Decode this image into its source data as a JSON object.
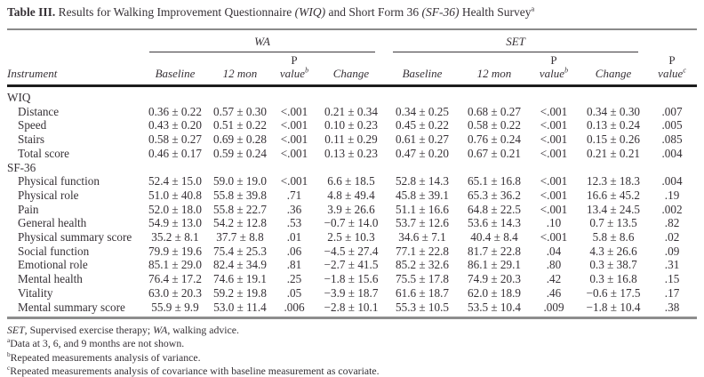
{
  "title": {
    "label": "Table III.",
    "part1": " Results for Walking Improvement Questionnaire ",
    "wiq": "(WIQ)",
    "part2": " and Short Form 36 ",
    "sf36": "(SF-36)",
    "part3": " Health Survey",
    "sup": "a"
  },
  "table": {
    "groups": [
      {
        "label": "WA"
      },
      {
        "label": "SET"
      }
    ],
    "col_headers": {
      "instrument": "Instrument",
      "baseline": "Baseline",
      "twelve_mon": "12 mon",
      "p": "P",
      "value": "value",
      "sup_b": "b",
      "sup_c": "c",
      "change": "Change"
    },
    "rows": [
      {
        "type": "section",
        "label": "WIQ"
      },
      {
        "type": "data",
        "label": "Distance",
        "values": [
          "0.36 ± 0.22",
          "0.57 ± 0.30",
          "<.001",
          "0.21 ± 0.34",
          "0.34 ± 0.25",
          "0.68 ± 0.27",
          "<.001",
          "0.34 ± 0.30",
          ".007"
        ]
      },
      {
        "type": "data",
        "label": "Speed",
        "values": [
          "0.43 ± 0.20",
          "0.51 ± 0.22",
          "<.001",
          "0.10 ± 0.23",
          "0.45 ± 0.22",
          "0.58 ± 0.22",
          "<.001",
          "0.13 ± 0.24",
          ".005"
        ]
      },
      {
        "type": "data",
        "label": "Stairs",
        "values": [
          "0.58 ± 0.27",
          "0.69 ± 0.28",
          "<.001",
          "0.11 ± 0.29",
          "0.61 ± 0.27",
          "0.76 ± 0.24",
          "<.001",
          "0.15 ± 0.26",
          ".085"
        ]
      },
      {
        "type": "data",
        "label": "Total score",
        "values": [
          "0.46 ± 0.17",
          "0.59 ± 0.24",
          "<.001",
          "0.13 ± 0.23",
          "0.47 ± 0.20",
          "0.67 ± 0.21",
          "<.001",
          "0.21 ± 0.21",
          ".004"
        ]
      },
      {
        "type": "section",
        "label": "SF-36"
      },
      {
        "type": "data",
        "label": "Physical function",
        "values": [
          "52.4 ± 15.0",
          "59.0 ± 19.0",
          "<.001",
          "6.6 ± 18.5",
          "52.8 ± 14.3",
          "65.1 ± 16.8",
          "<.001",
          "12.3 ± 18.3",
          ".004"
        ]
      },
      {
        "type": "data",
        "label": "Physical role",
        "values": [
          "51.0 ± 40.8",
          "55.8 ± 39.8",
          ".71",
          "4.8 ± 49.4",
          "45.8 ± 39.1",
          "65.3 ± 36.2",
          "<.001",
          "16.6 ± 45.2",
          ".19"
        ]
      },
      {
        "type": "data",
        "label": "Pain",
        "values": [
          "52.0 ± 18.0",
          "55.8 ± 22.7",
          ".36",
          "3.9 ± 26.6",
          "51.1 ± 16.6",
          "64.8 ± 22.5",
          "<.001",
          "13.4 ± 24.5",
          ".002"
        ]
      },
      {
        "type": "data",
        "label": "General health",
        "values": [
          "54.9 ± 13.0",
          "54.2 ± 12.8",
          ".53",
          "−0.7 ± 14.0",
          "53.7 ± 12.6",
          "53.6 ± 14.3",
          ".10",
          "0.7 ± 13.5",
          ".82"
        ]
      },
      {
        "type": "data",
        "label": "Physical summary score",
        "values": [
          "35.2 ± 8.1",
          "37.7 ± 8.8",
          ".01",
          "2.5 ± 10.3",
          "34.6 ± 7.1",
          "40.4 ± 8.4",
          "<.001",
          "5.8 ± 8.6",
          ".02"
        ]
      },
      {
        "type": "data",
        "label": "Social function",
        "values": [
          "79.9 ± 19.6",
          "75.4 ± 25.3",
          ".06",
          "−4.5 ± 27.4",
          "77.1 ± 22.8",
          "81.7 ± 22.8",
          ".04",
          "4.3 ± 26.6",
          ".09"
        ]
      },
      {
        "type": "data",
        "label": "Emotional role",
        "values": [
          "85.1 ± 29.0",
          "82.4 ± 34.9",
          ".81",
          "−2.7 ± 41.5",
          "85.2 ± 32.6",
          "86.1 ± 29.1",
          ".80",
          "0.3 ± 38.7",
          ".31"
        ]
      },
      {
        "type": "data",
        "label": "Mental health",
        "values": [
          "76.4 ± 17.2",
          "74.6 ± 19.1",
          ".25",
          "−1.8 ± 15.6",
          "75.5 ± 17.8",
          "74.9 ± 20.3",
          ".42",
          "0.3 ± 16.8",
          ".15"
        ]
      },
      {
        "type": "data",
        "label": "Vitality",
        "values": [
          "63.0 ± 20.3",
          "59.2 ± 19.8",
          ".05",
          "−3.9 ± 18.7",
          "61.6 ± 18.7",
          "62.0 ± 18.9",
          ".46",
          "−0.6 ± 17.5",
          ".17"
        ]
      },
      {
        "type": "data",
        "label": "Mental summary score",
        "values": [
          "55.9 ± 9.9",
          "53.0 ± 11.4",
          ".006",
          "−2.8 ± 10.1",
          "55.3 ± 10.5",
          "53.5 ± 10.4",
          ".009",
          "−1.8 ± 10.4",
          ".38"
        ]
      }
    ]
  },
  "footnotes": {
    "abbrev": {
      "set": "SET",
      "set_rest": ", Supervised exercise therapy; ",
      "wa": "WA",
      "wa_rest": ", walking advice."
    },
    "notes": [
      {
        "sup": "a",
        "text": "Data at 3, 6, and 9 months are not shown."
      },
      {
        "sup": "b",
        "text": "Repeated measurements analysis of variance."
      },
      {
        "sup": "c",
        "text": "Repeated measurements analysis of covariance with baseline measurement as covariate."
      }
    ]
  }
}
